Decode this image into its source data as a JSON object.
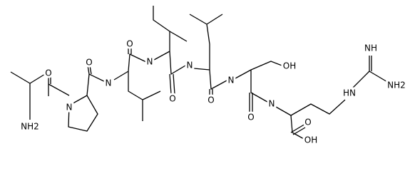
{
  "atoms": [
    "NH2",
    "O",
    "N",
    "O",
    "N",
    "O",
    "N",
    "O",
    "N",
    "O",
    "N",
    "OH",
    "O",
    "N",
    "O",
    "OH",
    "HN",
    "NH",
    "NH2"
  ]
}
